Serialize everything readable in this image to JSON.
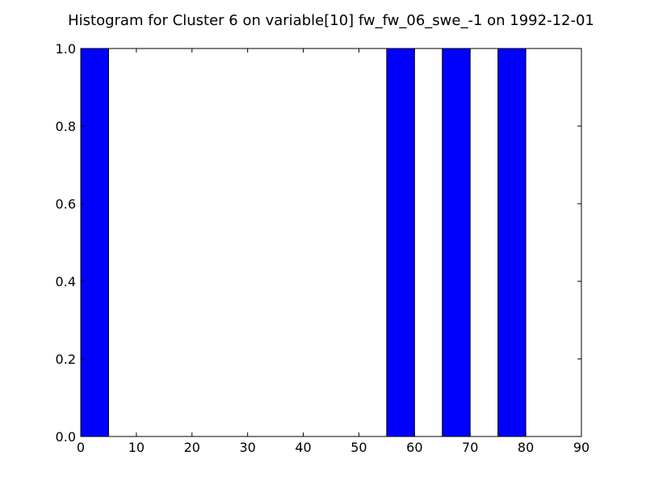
{
  "chart_data": {
    "type": "bar",
    "title": "Histogram for Cluster 6 on variable[10] fw_fw_06_swe_-1 on 1992-12-01",
    "xlabel": "",
    "ylabel": "",
    "xlim": [
      0,
      90
    ],
    "ylim": [
      0,
      1.0
    ],
    "xticks": [
      0,
      10,
      20,
      30,
      40,
      50,
      60,
      70,
      80,
      90
    ],
    "xtick_labels": [
      "0",
      "10",
      "20",
      "30",
      "40",
      "50",
      "60",
      "70",
      "80",
      "90"
    ],
    "yticks": [
      0.0,
      0.2,
      0.4,
      0.6,
      0.8,
      1.0
    ],
    "ytick_labels": [
      "0.0",
      "0.2",
      "0.4",
      "0.6",
      "0.8",
      "1.0"
    ],
    "grid": false,
    "bars": [
      {
        "x0": 0,
        "x1": 5,
        "value": 1.0
      },
      {
        "x0": 55,
        "x1": 60,
        "value": 1.0
      },
      {
        "x0": 65,
        "x1": 70,
        "value": 1.0
      },
      {
        "x0": 75,
        "x1": 80,
        "value": 1.0
      }
    ],
    "colors": {
      "bar": "#0000ff",
      "edge": "#000000"
    }
  }
}
